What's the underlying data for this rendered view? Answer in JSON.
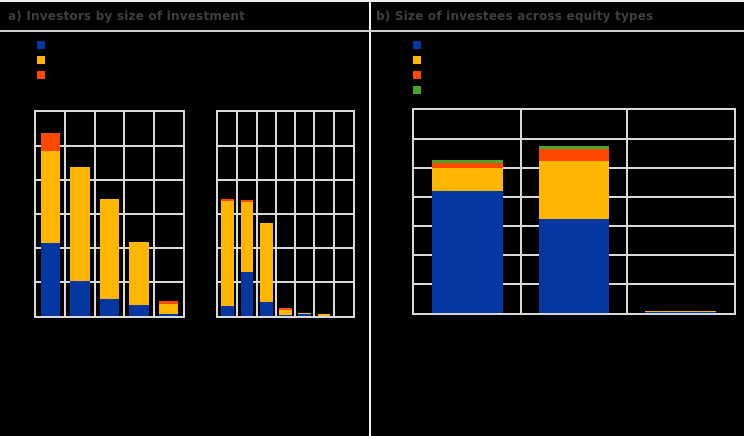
{
  "header": {
    "panel_a_title": "a) Investors by size of investment",
    "panel_b_title": "b) Size of investees across equity types"
  },
  "colors": {
    "blue": "#0437a0",
    "amber": "#ffb600",
    "orange_red": "#ff4800",
    "green": "#4da32b",
    "gridline": "#d9d9d9",
    "title_text": "#3f3f3f",
    "background": "#000000"
  },
  "legend": {
    "a": {
      "swatches": [
        {
          "name": "blue-series-swatch",
          "color": "#0437a0"
        },
        {
          "name": "amber-series-swatch",
          "color": "#ffb600"
        },
        {
          "name": "orange-red-series-swatch",
          "color": "#ff4800"
        }
      ]
    },
    "b": {
      "swatches": [
        {
          "name": "blue-series-swatch",
          "color": "#0437a0"
        },
        {
          "name": "amber-series-swatch",
          "color": "#ffb600"
        },
        {
          "name": "orange-red-series-swatch",
          "color": "#ff4800"
        },
        {
          "name": "green-series-swatch",
          "color": "#4da32b"
        }
      ]
    }
  },
  "chart_data": [
    {
      "id": "a1",
      "type": "bar",
      "stacked": true,
      "title": "a) Investors by size of investment (left sub-chart)",
      "xlabel": "",
      "ylabel": "",
      "ylim": [
        0,
        60
      ],
      "gridline_step": 10,
      "grid": true,
      "num_columns": 5,
      "categories": [
        "",
        "",
        "",
        "",
        ""
      ],
      "series": [
        {
          "name": "blue",
          "color": "#0437a0",
          "values": [
            21.5,
            10.2,
            5.0,
            3.1,
            0.7
          ]
        },
        {
          "name": "amber",
          "color": "#ffb600",
          "values": [
            26.9,
            33.6,
            29.3,
            18.6,
            2.9
          ]
        },
        {
          "name": "orange_red",
          "color": "#ff4800",
          "values": [
            5.4,
            0,
            0,
            0,
            0.8
          ]
        }
      ]
    },
    {
      "id": "a2",
      "type": "bar",
      "stacked": true,
      "title": "a) Investors by size of investment (right sub-chart)",
      "xlabel": "",
      "ylabel": "",
      "ylim": [
        0,
        60
      ],
      "gridline_step": 10,
      "grid": true,
      "num_columns": 7,
      "categories": [
        "",
        "",
        "",
        "",
        "",
        "",
        ""
      ],
      "series": [
        {
          "name": "blue",
          "color": "#0437a0",
          "values": [
            2.9,
            12.8,
            4.1,
            0.4,
            0.7,
            0,
            0
          ]
        },
        {
          "name": "amber",
          "color": "#ffb600",
          "values": [
            30.9,
            20.6,
            23.4,
            1.5,
            0.2,
            0.6,
            0
          ]
        },
        {
          "name": "orange_red",
          "color": "#ff4800",
          "values": [
            0.6,
            0.7,
            0,
            0.4,
            0,
            0,
            0
          ]
        }
      ]
    },
    {
      "id": "b",
      "type": "bar",
      "stacked": true,
      "title": "b) Size of investees across equity types",
      "xlabel": "",
      "ylabel": "",
      "ylim": [
        0,
        70
      ],
      "gridline_step": 10,
      "grid": true,
      "num_columns": 3,
      "categories": [
        "",
        "",
        ""
      ],
      "series": [
        {
          "name": "blue",
          "color": "#0437a0",
          "values": [
            42.2,
            32.5,
            0.6
          ]
        },
        {
          "name": "amber",
          "color": "#ffb600",
          "values": [
            7.7,
            20.0,
            0.1
          ]
        },
        {
          "name": "orange_red",
          "color": "#ff4800",
          "values": [
            1.8,
            4.1,
            0
          ]
        },
        {
          "name": "green",
          "color": "#4da32b",
          "values": [
            0.9,
            1.0,
            0
          ]
        }
      ]
    }
  ]
}
